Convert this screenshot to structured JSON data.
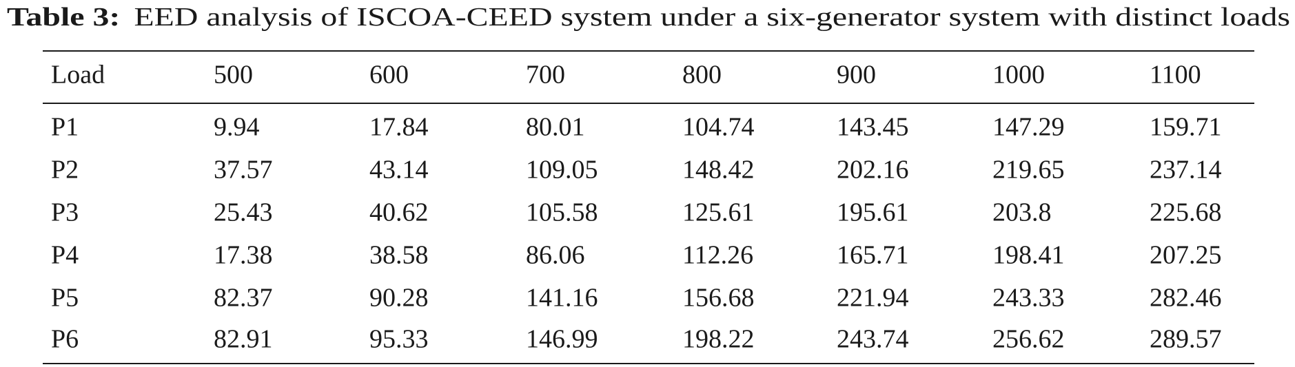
{
  "caption": {
    "label": "Table 3:",
    "text": "EED analysis of ISCOA-CEED system under a six-generator system with distinct loads"
  },
  "table": {
    "columns": [
      "Load",
      500,
      600,
      700,
      800,
      900,
      1000,
      1100
    ],
    "rows": [
      [
        "P1",
        9.94,
        17.84,
        80.01,
        104.74,
        143.45,
        147.29,
        159.71
      ],
      [
        "P2",
        37.57,
        43.14,
        109.05,
        148.42,
        202.16,
        219.65,
        237.14
      ],
      [
        "P3",
        25.43,
        40.62,
        105.58,
        125.61,
        195.61,
        203.8,
        225.68
      ],
      [
        "P4",
        17.38,
        38.58,
        86.06,
        112.26,
        165.71,
        198.41,
        207.25
      ],
      [
        "P5",
        82.37,
        90.28,
        141.16,
        156.68,
        221.94,
        243.33,
        282.46
      ],
      [
        "P6",
        82.91,
        95.33,
        146.99,
        198.22,
        243.74,
        256.62,
        289.57
      ]
    ]
  }
}
